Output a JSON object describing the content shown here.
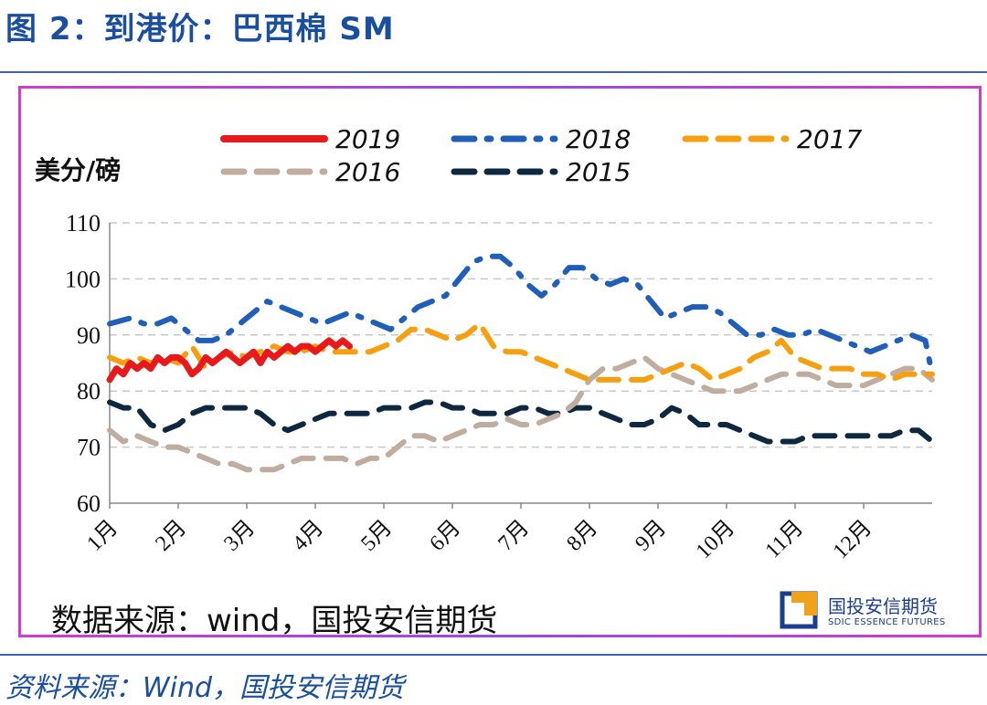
{
  "figure_title": "图 2：到港价：巴西棉 SM",
  "source_inner": "数据来源：wind，国投安信期货",
  "source_outer": "资料来源：Wind，国投安信期货",
  "logo": {
    "text_cn": "国投安信期货",
    "text_en": "SDIC ESSENCE FUTURES",
    "icon": "sdic-logo-icon"
  },
  "colors": {
    "title": "#1a4fa0",
    "frame": "#d23bd0",
    "grid": "#c8c8c8"
  },
  "chart_data": {
    "type": "line",
    "ylabel": "美分/磅",
    "xlabel": "",
    "ylim": [
      60,
      110
    ],
    "yticks": [
      60,
      70,
      80,
      90,
      100,
      110
    ],
    "xlim": [
      0,
      12
    ],
    "categories": [
      "1月",
      "2月",
      "3月",
      "4月",
      "5月",
      "6月",
      "7月",
      "8月",
      "9月",
      "10月",
      "11月",
      "12月"
    ],
    "grid": "horizontal dashed",
    "legend_position": "top",
    "series": [
      {
        "name": "2019",
        "color": "#e8191b",
        "style": "solid",
        "x": [
          0.0,
          0.1,
          0.2,
          0.3,
          0.4,
          0.5,
          0.6,
          0.7,
          0.8,
          0.9,
          1.0,
          1.1,
          1.2,
          1.3,
          1.4,
          1.5,
          1.6,
          1.7,
          1.8,
          1.9,
          2.0,
          2.1,
          2.2,
          2.3,
          2.4,
          2.5,
          2.6,
          2.7,
          2.8,
          2.9,
          3.0,
          3.1,
          3.2,
          3.3,
          3.4,
          3.5
        ],
        "y": [
          82,
          84,
          83,
          85,
          84,
          85,
          84,
          86,
          85,
          86,
          86,
          85,
          83,
          84,
          86,
          85,
          86,
          87,
          86,
          85,
          86,
          87,
          85,
          87,
          86,
          87,
          88,
          87,
          88,
          88,
          87,
          88,
          89,
          88,
          89,
          88
        ]
      },
      {
        "name": "2018",
        "color": "#1f5fb8",
        "style": "dash-dot",
        "x": [
          0.0,
          0.3,
          0.5,
          0.7,
          0.9,
          1.1,
          1.3,
          1.5,
          1.7,
          1.9,
          2.1,
          2.3,
          2.5,
          2.7,
          2.9,
          3.1,
          3.3,
          3.5,
          3.7,
          3.9,
          4.1,
          4.3,
          4.5,
          4.7,
          4.9,
          5.1,
          5.3,
          5.5,
          5.7,
          5.9,
          6.1,
          6.3,
          6.5,
          6.7,
          6.9,
          7.1,
          7.3,
          7.5,
          7.7,
          7.9,
          8.1,
          8.3,
          8.5,
          8.7,
          8.9,
          9.1,
          9.3,
          9.5,
          9.7,
          9.9,
          10.1,
          10.3,
          10.5,
          10.7,
          10.9,
          11.1,
          11.3,
          11.5,
          11.7,
          11.9,
          12.0
        ],
        "y": [
          92,
          93,
          92,
          92,
          93,
          91,
          89,
          89,
          90,
          92,
          94,
          96,
          95,
          94,
          93,
          92,
          93,
          94,
          93,
          92,
          91,
          93,
          95,
          96,
          97,
          100,
          103,
          104,
          104,
          102,
          99,
          97,
          99,
          102,
          102,
          100,
          99,
          100,
          99,
          96,
          93,
          94,
          95,
          95,
          94,
          92,
          90,
          90,
          91,
          90,
          90,
          91,
          90,
          89,
          88,
          87,
          88,
          89,
          90,
          89,
          83
        ]
      },
      {
        "name": "2017",
        "color": "#f6a00f",
        "style": "dashed",
        "x": [
          0.0,
          0.2,
          0.4,
          0.6,
          0.8,
          1.0,
          1.2,
          1.4,
          1.6,
          1.8,
          2.0,
          2.2,
          2.4,
          2.6,
          2.8,
          3.0,
          3.2,
          3.4,
          3.6,
          3.8,
          4.0,
          4.2,
          4.4,
          4.6,
          4.8,
          5.0,
          5.2,
          5.4,
          5.6,
          5.8,
          6.0,
          6.2,
          6.4,
          6.6,
          6.8,
          7.0,
          7.2,
          7.4,
          7.6,
          7.8,
          8.0,
          8.2,
          8.4,
          8.6,
          8.8,
          9.0,
          9.2,
          9.4,
          9.6,
          9.8,
          10.0,
          10.2,
          10.4,
          10.6,
          10.8,
          11.0,
          11.2,
          11.4,
          11.6,
          11.8,
          12.0
        ],
        "y": [
          86,
          85,
          86,
          85,
          86,
          85,
          88,
          84,
          86,
          87,
          86,
          87,
          88,
          87,
          87,
          88,
          87,
          87,
          87,
          87,
          88,
          89,
          91,
          91,
          90,
          89,
          90,
          92,
          88,
          87,
          87,
          86,
          85,
          84,
          83,
          82,
          82,
          82,
          82,
          82,
          83,
          84,
          85,
          84,
          82,
          83,
          84,
          86,
          87,
          89,
          86,
          85,
          84,
          84,
          84,
          83,
          83,
          82,
          83,
          83,
          83
        ]
      },
      {
        "name": "2016",
        "color": "#c0ada0",
        "style": "dashed",
        "x": [
          0.0,
          0.2,
          0.4,
          0.6,
          0.8,
          1.0,
          1.2,
          1.4,
          1.6,
          1.8,
          2.0,
          2.2,
          2.4,
          2.6,
          2.8,
          3.0,
          3.2,
          3.4,
          3.6,
          3.8,
          4.0,
          4.2,
          4.4,
          4.6,
          4.8,
          5.0,
          5.2,
          5.4,
          5.6,
          5.8,
          6.0,
          6.2,
          6.4,
          6.6,
          6.8,
          7.0,
          7.2,
          7.4,
          7.6,
          7.8,
          8.0,
          8.2,
          8.4,
          8.6,
          8.8,
          9.0,
          9.2,
          9.4,
          9.6,
          9.8,
          10.0,
          10.2,
          10.4,
          10.6,
          10.8,
          11.0,
          11.2,
          11.4,
          11.6,
          11.8,
          12.0
        ],
        "y": [
          73,
          71,
          72,
          71,
          70,
          70,
          69,
          68,
          67,
          67,
          66,
          66,
          66,
          67,
          68,
          68,
          68,
          68,
          67,
          68,
          68,
          70,
          72,
          72,
          71,
          72,
          73,
          74,
          74,
          75,
          74,
          74,
          75,
          76,
          78,
          82,
          84,
          84,
          85,
          86,
          84,
          83,
          82,
          81,
          80,
          80,
          80,
          81,
          82,
          83,
          83,
          83,
          82,
          81,
          81,
          81,
          82,
          83,
          84,
          84,
          82
        ]
      },
      {
        "name": "2015",
        "color": "#0e2840",
        "style": "dashed",
        "x": [
          0.0,
          0.2,
          0.4,
          0.6,
          0.8,
          1.0,
          1.2,
          1.4,
          1.6,
          1.8,
          2.0,
          2.2,
          2.4,
          2.6,
          2.8,
          3.0,
          3.2,
          3.4,
          3.6,
          3.8,
          4.0,
          4.2,
          4.4,
          4.6,
          4.8,
          5.0,
          5.2,
          5.4,
          5.6,
          5.8,
          6.0,
          6.2,
          6.4,
          6.6,
          6.8,
          7.0,
          7.2,
          7.4,
          7.6,
          7.8,
          8.0,
          8.2,
          8.4,
          8.6,
          8.8,
          9.0,
          9.2,
          9.4,
          9.6,
          9.8,
          10.0,
          10.2,
          10.4,
          10.6,
          10.8,
          11.0,
          11.2,
          11.4,
          11.6,
          11.8,
          12.0
        ],
        "y": [
          78,
          77,
          77,
          74,
          73,
          74,
          76,
          77,
          77,
          77,
          77,
          76,
          74,
          73,
          74,
          75,
          76,
          76,
          76,
          76,
          77,
          77,
          77,
          78,
          78,
          77,
          77,
          76,
          76,
          76,
          77,
          77,
          76,
          76,
          77,
          77,
          76,
          75,
          74,
          74,
          75,
          77,
          76,
          74,
          74,
          74,
          73,
          72,
          71,
          71,
          71,
          72,
          72,
          72,
          72,
          72,
          72,
          72,
          73,
          73,
          71
        ]
      }
    ]
  }
}
